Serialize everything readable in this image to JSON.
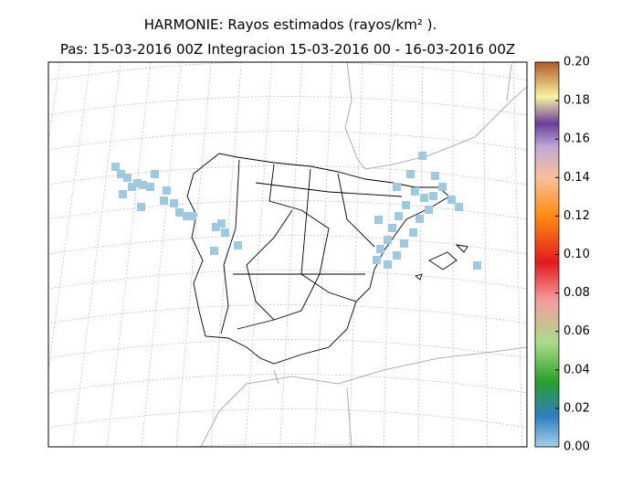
{
  "title": {
    "line1": "HARMONIE: Rayos estimados  (rayos/km² ).",
    "line2": "Pas: 15-03-2016 00Z Integracion 15-03-2016 00 - 16-03-2016 00Z"
  },
  "colorbar": {
    "range": [
      0,
      0.2
    ],
    "ticks": [
      {
        "value": 0,
        "label": "0.00"
      },
      {
        "value": 0.02,
        "label": "0.02"
      },
      {
        "value": 0.04,
        "label": "0.04"
      },
      {
        "value": 0.06,
        "label": "0.06"
      },
      {
        "value": 0.08,
        "label": "0.08"
      },
      {
        "value": 0.1,
        "label": "0.10"
      },
      {
        "value": 0.12,
        "label": "0.12"
      },
      {
        "value": 0.14,
        "label": "0.14"
      },
      {
        "value": 0.16,
        "label": "0.16"
      },
      {
        "value": 0.18,
        "label": "0.18"
      },
      {
        "value": 0.2,
        "label": "0.20"
      }
    ]
  }
}
